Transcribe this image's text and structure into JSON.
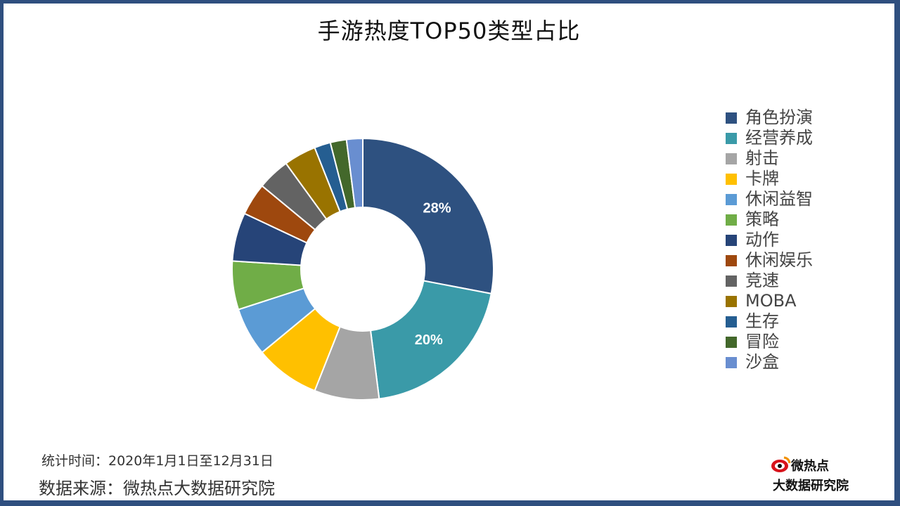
{
  "chart_data": {
    "type": "pie",
    "donut": true,
    "title": "手游热度TOP50类型占比",
    "categories": [
      "角色扮演",
      "经营养成",
      "射击",
      "卡牌",
      "休闲益智",
      "策略",
      "动作",
      "休闲娱乐",
      "竞速",
      "MOBA",
      "生存",
      "冒险",
      "沙盒"
    ],
    "values": [
      28,
      20,
      8,
      8,
      6,
      6,
      6,
      4,
      4,
      4,
      2,
      2,
      2
    ],
    "data_labels": [
      "28%",
      "20%",
      "",
      "",
      "",
      "",
      "",
      "",
      "",
      "",
      "",
      "",
      ""
    ],
    "colors": [
      "#2e5180",
      "#3a9aa8",
      "#a5a5a5",
      "#ffc000",
      "#5b9bd5",
      "#70ad47",
      "#264478",
      "#9e480e",
      "#636363",
      "#997300",
      "#255e91",
      "#43682b",
      "#698ed0"
    ],
    "legend_position": "right"
  },
  "footer": {
    "period": "统计时间：2020年1月1日至12月31日",
    "source": "数据来源：微热点大数据研究院"
  },
  "logo": {
    "name": "微热点",
    "org": "大数据研究院",
    "icon": "weibo-eye-icon"
  }
}
